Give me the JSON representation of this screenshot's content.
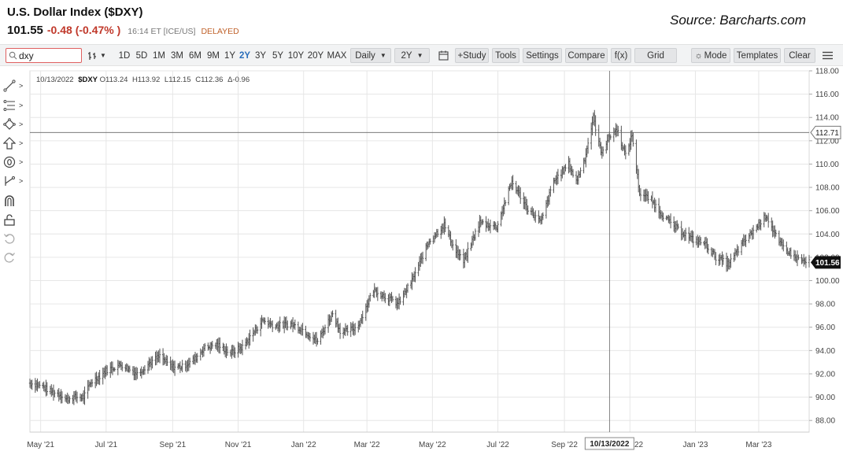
{
  "header": {
    "title": "U.S. Dollar Index ($DXY)",
    "price": "101.55",
    "change": "-0.48 (-0.47% )",
    "time": "16:14 ET [ICE/US]",
    "delayed": "DELAYED",
    "source": "Source: Barcharts.com"
  },
  "toolbar": {
    "search_value": "dxy",
    "ranges": [
      "1D",
      "5D",
      "1M",
      "3M",
      "6M",
      "9M",
      "1Y",
      "2Y",
      "3Y",
      "5Y",
      "10Y",
      "20Y",
      "MAX"
    ],
    "active_range": "2Y",
    "interval": "Daily",
    "period": "2Y",
    "study": "+Study",
    "tools": "Tools",
    "settings": "Settings",
    "compare": "Compare",
    "fx": "f(x)",
    "grid": "Grid",
    "mode": "Mode",
    "templates": "Templates",
    "clear": "Clear"
  },
  "side_tools": [
    "line-tool-icon",
    "fib-tool-icon",
    "shape-tool-icon",
    "arrow-tool-icon",
    "annotation-tool-icon",
    "measure-tool-icon",
    "magnet-icon",
    "lock-icon",
    "undo-icon",
    "redo-icon"
  ],
  "ohlc": {
    "date": "10/13/2022",
    "symbol": "$DXY",
    "o_label": "O",
    "o": "113.24",
    "h_label": "H",
    "h": "113.92",
    "l_label": "L",
    "l": "112.15",
    "c_label": "C",
    "c": "112.36",
    "d_label": "Δ",
    "d": "-0.96"
  },
  "chart_data": {
    "type": "ohlc",
    "title": "U.S. Dollar Index ($DXY)",
    "xlabel": "",
    "ylabel": "",
    "ylim": [
      87,
      118
    ],
    "xlim": [
      "2021-04-21",
      "2023-04-17"
    ],
    "y_ticks": [
      88,
      90,
      92,
      94,
      96,
      98,
      100,
      102,
      104,
      106,
      108,
      110,
      112,
      114,
      116,
      118
    ],
    "y_tick_labels": [
      "88.00",
      "90.00",
      "92.00",
      "94.00",
      "96.00",
      "98.00",
      "100.00",
      "102.00",
      "104.00",
      "106.00",
      "108.00",
      "110.00",
      "112.00",
      "114.00",
      "116.00",
      "118.00"
    ],
    "x_ticks": [
      "2021-05-01",
      "2021-07-01",
      "2021-09-01",
      "2021-11-01",
      "2022-01-01",
      "2022-03-01",
      "2022-05-01",
      "2022-07-01",
      "2022-09-01",
      "2022-11-01",
      "2023-01-01",
      "2023-03-01"
    ],
    "x_tick_labels": [
      "May '21",
      "Jul '21",
      "Sep '21",
      "Nov '21",
      "Jan '22",
      "Mar '22",
      "May '22",
      "Jul '22",
      "Sep '22",
      "Nov '22",
      "Jan '23",
      "Mar '23"
    ],
    "grid": true,
    "crosshair": {
      "date": "2022-10-13",
      "date_label": "10/13/2022",
      "price": 112.71,
      "price_label": "112.71"
    },
    "last_price": {
      "value": 101.56,
      "label": "101.56"
    },
    "series": [
      {
        "name": "$DXY",
        "points": [
          [
            "2021-04-21",
            91.2
          ],
          [
            "2021-05-01",
            91.0
          ],
          [
            "2021-05-10",
            90.5
          ],
          [
            "2021-05-20",
            90.2
          ],
          [
            "2021-05-25",
            89.8
          ],
          [
            "2021-06-01",
            90.0
          ],
          [
            "2021-06-10",
            90.0
          ],
          [
            "2021-06-17",
            91.3
          ],
          [
            "2021-06-25",
            91.8
          ],
          [
            "2021-07-01",
            92.3
          ],
          [
            "2021-07-15",
            92.8
          ],
          [
            "2021-07-30",
            92.0
          ],
          [
            "2021-08-10",
            92.9
          ],
          [
            "2021-08-20",
            93.5
          ],
          [
            "2021-08-31",
            92.6
          ],
          [
            "2021-09-10",
            92.6
          ],
          [
            "2021-09-22",
            93.3
          ],
          [
            "2021-09-30",
            94.2
          ],
          [
            "2021-10-12",
            94.5
          ],
          [
            "2021-10-25",
            93.8
          ],
          [
            "2021-11-05",
            94.3
          ],
          [
            "2021-11-15",
            95.5
          ],
          [
            "2021-11-24",
            96.6
          ],
          [
            "2021-12-05",
            96.1
          ],
          [
            "2021-12-20",
            96.3
          ],
          [
            "2021-12-31",
            95.8
          ],
          [
            "2022-01-14",
            94.8
          ],
          [
            "2022-01-28",
            97.2
          ],
          [
            "2022-02-05",
            95.5
          ],
          [
            "2022-02-20",
            96.0
          ],
          [
            "2022-03-07",
            99.2
          ],
          [
            "2022-03-15",
            98.8
          ],
          [
            "2022-03-30",
            98.0
          ],
          [
            "2022-04-12",
            100.0
          ],
          [
            "2022-04-28",
            103.4
          ],
          [
            "2022-05-12",
            104.8
          ],
          [
            "2022-05-20",
            103.0
          ],
          [
            "2022-05-30",
            101.6
          ],
          [
            "2022-06-14",
            105.0
          ],
          [
            "2022-06-30",
            104.6
          ],
          [
            "2022-07-14",
            108.5
          ],
          [
            "2022-07-28",
            106.3
          ],
          [
            "2022-08-10",
            105.0
          ],
          [
            "2022-08-22",
            108.5
          ],
          [
            "2022-09-05",
            110.0
          ],
          [
            "2022-09-12",
            108.5
          ],
          [
            "2022-09-20",
            110.5
          ],
          [
            "2022-09-28",
            114.0
          ],
          [
            "2022-10-05",
            111.0
          ],
          [
            "2022-10-13",
            112.36
          ],
          [
            "2022-10-20",
            113.0
          ],
          [
            "2022-10-28",
            110.7
          ],
          [
            "2022-11-03",
            112.5
          ],
          [
            "2022-11-10",
            107.5
          ],
          [
            "2022-11-20",
            107.0
          ],
          [
            "2022-11-30",
            105.8
          ],
          [
            "2022-12-10",
            104.8
          ],
          [
            "2022-12-30",
            103.5
          ],
          [
            "2023-01-10",
            103.2
          ],
          [
            "2023-01-20",
            102.0
          ],
          [
            "2023-02-01",
            101.4
          ],
          [
            "2023-02-14",
            103.2
          ],
          [
            "2023-02-28",
            104.7
          ],
          [
            "2023-03-08",
            105.6
          ],
          [
            "2023-03-20",
            103.2
          ],
          [
            "2023-04-04",
            102.0
          ],
          [
            "2023-04-14",
            101.56
          ]
        ]
      }
    ]
  },
  "colors": {
    "bars": "#555555",
    "grid": "#e6e6e6",
    "change": "#c0392b",
    "delayed": "#c0622b",
    "active": "#2a6ebb",
    "label_bg": "#111111"
  }
}
